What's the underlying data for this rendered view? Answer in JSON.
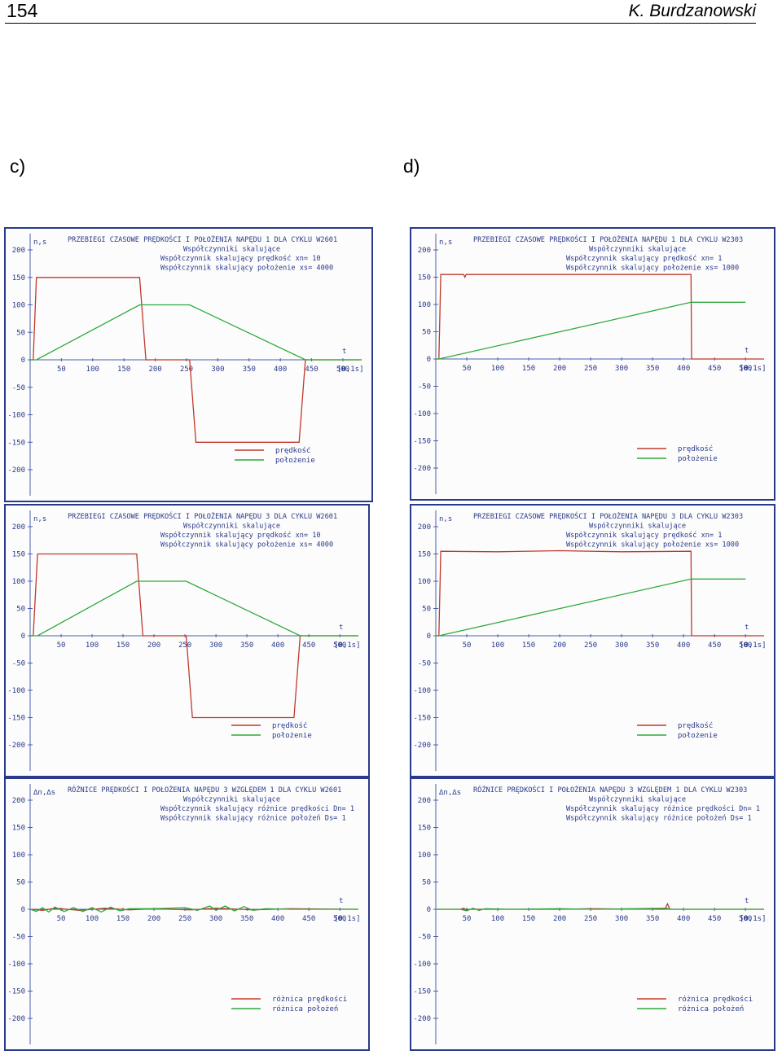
{
  "header": {
    "page_number": "154",
    "author": "K. Burdzanowski"
  },
  "panel_labels": [
    "c)",
    "d)"
  ],
  "chart_data": [
    {
      "type": "line",
      "title": [
        "PRZEBIEGI CZASOWE PRĘDKOŚCI I POŁOŻENIA NAPĘDU 1 DLA CYKLU  W2601",
        "Współczynniki skalujące",
        "Współczynnik skalujący prędkość  xn= 10",
        "Współczynnik skalujący położenie xs= 4000"
      ],
      "ylabel": "n,s",
      "xlabel": "t",
      "xunit": "[0,1s]",
      "ylim": [
        -200,
        200
      ],
      "xlim": [
        0,
        530
      ],
      "yticks": [
        200,
        150,
        100,
        50,
        0,
        -50,
        -100,
        -150,
        -200
      ],
      "xticks": [
        50,
        100,
        150,
        200,
        250,
        300,
        350,
        400,
        450,
        500
      ],
      "legend_position": "bottom-right",
      "series": [
        {
          "name": "prędkość",
          "color": "#c0392b",
          "points": [
            [
              0,
              0
            ],
            [
              5,
              0
            ],
            [
              10,
              150
            ],
            [
              175,
              150
            ],
            [
              185,
              0
            ],
            [
              255,
              0
            ],
            [
              265,
              -150
            ],
            [
              430,
              -150
            ],
            [
              440,
              0
            ],
            [
              530,
              0
            ]
          ]
        },
        {
          "name": "położenie",
          "color": "#2eaa3a",
          "points": [
            [
              0,
              0
            ],
            [
              10,
              0
            ],
            [
              175,
              100
            ],
            [
              255,
              100
            ],
            [
              440,
              0
            ],
            [
              530,
              0
            ]
          ]
        }
      ]
    },
    {
      "type": "line",
      "title": [
        "PRZEBIEGI CZASOWE PRĘDKOŚCI I POŁOŻENIA NAPĘDU 1 DLA CYKLU  W2303",
        "Współczynniki skalujące",
        "Współczynnik skalujący prędkość  xn= 1",
        "Współczynnik skalujący położenie xs= 1000"
      ],
      "ylabel": "n,s",
      "xlabel": "t",
      "xunit": "[0,1s]",
      "ylim": [
        -200,
        200
      ],
      "xlim": [
        0,
        530
      ],
      "yticks": [
        200,
        150,
        100,
        50,
        0,
        -50,
        -100,
        -150,
        -200
      ],
      "xticks": [
        50,
        100,
        150,
        200,
        250,
        300,
        350,
        400,
        450,
        500
      ],
      "legend_position": "bottom-right",
      "series": [
        {
          "name": "prędkość",
          "color": "#c0392b",
          "points": [
            [
              0,
              0
            ],
            [
              5,
              0
            ],
            [
              8,
              155
            ],
            [
              45,
              155
            ],
            [
              47,
              150
            ],
            [
              49,
              155
            ],
            [
              412,
              155
            ],
            [
              413,
              0
            ],
            [
              530,
              0
            ]
          ]
        },
        {
          "name": "położenie",
          "color": "#2eaa3a",
          "points": [
            [
              0,
              0
            ],
            [
              5,
              0
            ],
            [
              412,
              104
            ],
            [
              420,
              104
            ],
            [
              500,
              104
            ]
          ]
        }
      ]
    },
    {
      "type": "line",
      "title": [
        "PRZEBIEGI CZASOWE PRĘDKOŚCI I POŁOŻENIA NAPĘDU 3 DLA CYKLU  W2601",
        "Współczynniki skalujące",
        "Współczynnik skalujący prędkość  xn= 10",
        "Współczynnik skalujący położenie xs= 4000"
      ],
      "ylabel": "n,s",
      "xlabel": "t",
      "xunit": "[0,1s]",
      "ylim": [
        -200,
        200
      ],
      "xlim": [
        0,
        530
      ],
      "yticks": [
        200,
        150,
        100,
        50,
        0,
        -50,
        -100,
        -150,
        -200
      ],
      "xticks": [
        50,
        100,
        150,
        200,
        250,
        300,
        350,
        400,
        450,
        500
      ],
      "legend_position": "bottom-right",
      "series": [
        {
          "name": "prędkość",
          "color": "#c0392b",
          "points": [
            [
              0,
              0
            ],
            [
              5,
              0
            ],
            [
              12,
              150
            ],
            [
              172,
              150
            ],
            [
              182,
              0
            ],
            [
              252,
              0
            ],
            [
              262,
              -150
            ],
            [
              426,
              -150
            ],
            [
              436,
              0
            ],
            [
              530,
              0
            ]
          ]
        },
        {
          "name": "położenie",
          "color": "#2eaa3a",
          "points": [
            [
              0,
              0
            ],
            [
              12,
              0
            ],
            [
              172,
              100
            ],
            [
              252,
              100
            ],
            [
              436,
              0
            ],
            [
              530,
              0
            ]
          ]
        }
      ]
    },
    {
      "type": "line",
      "title": [
        "PRZEBIEGI CZASOWE PRĘDKOŚCI I POŁOŻENIA NAPĘDU 3 DLA CYKLU  W2303",
        "Współczynniki skalujące",
        "Współczynnik skalujący prędkość  xn= 1",
        "Współczynnik skalujący położenie xs= 1000"
      ],
      "ylabel": "n,s",
      "xlabel": "t",
      "xunit": "[0,1s]",
      "ylim": [
        -200,
        200
      ],
      "xlim": [
        0,
        530
      ],
      "yticks": [
        200,
        150,
        100,
        50,
        0,
        -50,
        -100,
        -150,
        -200
      ],
      "xticks": [
        50,
        100,
        150,
        200,
        250,
        300,
        350,
        400,
        450,
        500
      ],
      "legend_position": "bottom-right",
      "series": [
        {
          "name": "prędkość",
          "color": "#c0392b",
          "points": [
            [
              0,
              0
            ],
            [
              5,
              0
            ],
            [
              8,
              155
            ],
            [
              100,
              154
            ],
            [
              200,
              156
            ],
            [
              300,
              154
            ],
            [
              412,
              155
            ],
            [
              413,
              0
            ],
            [
              530,
              0
            ]
          ]
        },
        {
          "name": "położenie",
          "color": "#2eaa3a",
          "points": [
            [
              0,
              0
            ],
            [
              5,
              0
            ],
            [
              412,
              104
            ],
            [
              420,
              104
            ],
            [
              500,
              104
            ]
          ]
        }
      ]
    },
    {
      "type": "line",
      "title": [
        "RÓŻNICE PRĘDKOŚCI I POŁOŻENIA NAPĘDU 3 WZGLĘDEM 1 DLA CYKLU W2601",
        "Współczynniki skalujące",
        "Współczynnik skalujący różnice prędkości Dn= 1",
        "Współczynnik skalujący różnice położeń   Ds= 1"
      ],
      "ylabel": "∆n,∆s",
      "xlabel": "t",
      "xunit": "[0,1s]",
      "ylim": [
        -200,
        200
      ],
      "xlim": [
        0,
        530
      ],
      "yticks": [
        200,
        150,
        100,
        50,
        0,
        -50,
        -100,
        -150,
        -200
      ],
      "xticks": [
        50,
        100,
        150,
        200,
        250,
        300,
        350,
        400,
        450,
        500
      ],
      "legend_position": "bottom-right",
      "series": [
        {
          "name": "różnica prędkości",
          "color": "#c0392b",
          "points": [
            [
              0,
              0
            ],
            [
              20,
              -2
            ],
            [
              40,
              2
            ],
            [
              80,
              -2
            ],
            [
              120,
              2
            ],
            [
              160,
              -1
            ],
            [
              200,
              1
            ],
            [
              260,
              -1
            ],
            [
              300,
              2
            ],
            [
              360,
              -1
            ],
            [
              420,
              1
            ],
            [
              530,
              0
            ]
          ]
        },
        {
          "name": "różnica położeń",
          "color": "#2eaa3a",
          "points": [
            [
              0,
              0
            ],
            [
              10,
              -4
            ],
            [
              20,
              3
            ],
            [
              30,
              -5
            ],
            [
              40,
              4
            ],
            [
              55,
              -4
            ],
            [
              70,
              3
            ],
            [
              85,
              -4
            ],
            [
              100,
              3
            ],
            [
              115,
              -5
            ],
            [
              130,
              4
            ],
            [
              145,
              -3
            ],
            [
              160,
              1
            ],
            [
              200,
              1
            ],
            [
              250,
              3
            ],
            [
              270,
              -2
            ],
            [
              290,
              6
            ],
            [
              300,
              -2
            ],
            [
              315,
              6
            ],
            [
              330,
              -3
            ],
            [
              345,
              5
            ],
            [
              360,
              -2
            ],
            [
              380,
              1
            ],
            [
              420,
              0
            ],
            [
              530,
              0
            ]
          ]
        }
      ]
    },
    {
      "type": "line",
      "title": [
        "RÓŻNICE PRĘDKOŚCI I POŁOŻENIA NAPĘDU 3 WZGLĘDEM 1 DLA CYKLU W2303",
        "Współczynniki skalujące",
        "Współczynnik skalujący różnice prędkości Dn= 1",
        "Współczynnik skalujący różnice położeń   Ds= 1"
      ],
      "ylabel": "∆n,∆s",
      "xlabel": "t",
      "xunit": "[0,1s]",
      "ylim": [
        -200,
        200
      ],
      "xlim": [
        0,
        530
      ],
      "yticks": [
        200,
        150,
        100,
        50,
        0,
        -50,
        -100,
        -150,
        -200
      ],
      "xticks": [
        50,
        100,
        150,
        200,
        250,
        300,
        350,
        400,
        450,
        500
      ],
      "legend_position": "bottom-right",
      "series": [
        {
          "name": "różnica prędkości",
          "color": "#c0392b",
          "points": [
            [
              0,
              0
            ],
            [
              40,
              0
            ],
            [
              45,
              2
            ],
            [
              50,
              -2
            ],
            [
              55,
              0
            ],
            [
              200,
              0
            ],
            [
              250,
              1
            ],
            [
              370,
              0
            ],
            [
              374,
              10
            ],
            [
              378,
              0
            ],
            [
              420,
              0
            ],
            [
              530,
              0
            ]
          ]
        },
        {
          "name": "różnica położeń",
          "color": "#2eaa3a",
          "points": [
            [
              0,
              0
            ],
            [
              40,
              0
            ],
            [
              50,
              -3
            ],
            [
              60,
              2
            ],
            [
              70,
              -2
            ],
            [
              80,
              1
            ],
            [
              120,
              0
            ],
            [
              200,
              1
            ],
            [
              260,
              0
            ],
            [
              372,
              2
            ],
            [
              380,
              0
            ],
            [
              530,
              0
            ]
          ]
        }
      ]
    }
  ]
}
